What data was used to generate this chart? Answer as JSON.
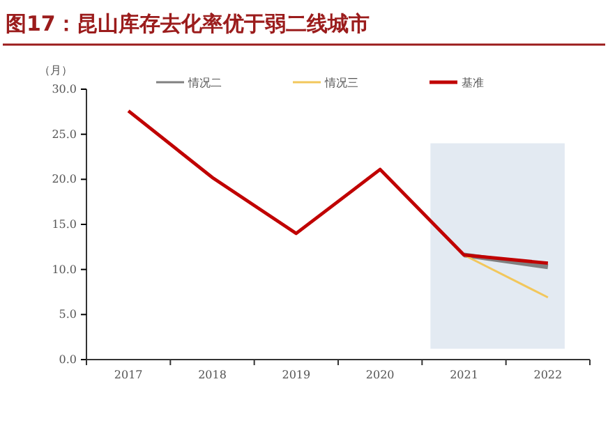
{
  "chart_data": {
    "type": "line",
    "title": "图17：昆山库存去化率优于弱二线城市",
    "ylabel": "（月）",
    "categories": [
      "2017",
      "2018",
      "2019",
      "2020",
      "2021",
      "2022"
    ],
    "series": [
      {
        "name": "情况二",
        "color": "#808080",
        "values": [
          null,
          null,
          null,
          null,
          11.6,
          10.3
        ]
      },
      {
        "name": "情况三",
        "color": "#f2c75c",
        "values": [
          null,
          null,
          null,
          null,
          11.6,
          6.9
        ]
      },
      {
        "name": "基准",
        "color": "#c00000",
        "values": [
          27.6,
          20.2,
          14.0,
          21.1,
          11.6,
          10.7
        ]
      }
    ],
    "ylim": [
      0,
      30
    ],
    "yticks": [
      {
        "value": 0,
        "label": "0.0"
      },
      {
        "value": 5,
        "label": "5.0"
      },
      {
        "value": 10,
        "label": "10.0"
      },
      {
        "value": 15,
        "label": "15.0"
      },
      {
        "value": 20,
        "label": "20.0"
      },
      {
        "value": 25,
        "label": "25.0"
      },
      {
        "value": 30,
        "label": "30.0"
      }
    ],
    "bands": [
      {
        "axis": "x",
        "from": "2021",
        "to": "2022",
        "color": "#e3eaf2"
      }
    ],
    "grid": false,
    "legend": "top",
    "marker": "none",
    "line_style": "solid"
  }
}
